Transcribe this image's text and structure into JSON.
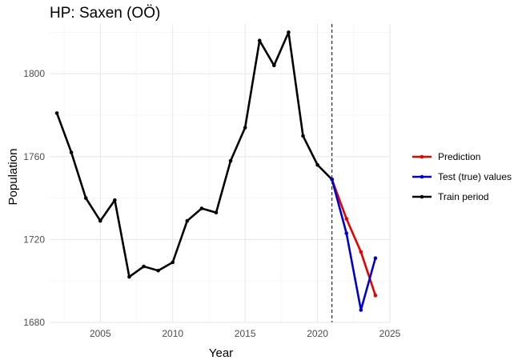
{
  "chart_data": {
    "type": "line",
    "title": "HP: Saxen (OÖ)",
    "xlabel": "Year",
    "ylabel": "Population",
    "xlim": [
      2001.5,
      2025
    ],
    "ylim": [
      1680,
      1824
    ],
    "x_ticks": [
      2005,
      2010,
      2015,
      2020,
      2025
    ],
    "y_ticks": [
      1680,
      1720,
      1760,
      1800
    ],
    "grid": true,
    "legend_position": "right",
    "vline": 2021,
    "series": [
      {
        "name": "Prediction",
        "color": "#e60000",
        "x": [
          2021,
          2022,
          2023,
          2024
        ],
        "values": [
          1749,
          1730,
          1714,
          1693
        ]
      },
      {
        "name": "Test (true) values",
        "color": "#0000cc",
        "x": [
          2021,
          2022,
          2023,
          2024
        ],
        "values": [
          1749,
          1723,
          1686,
          1711
        ]
      },
      {
        "name": "Train period",
        "color": "#000000",
        "x": [
          2002,
          2003,
          2004,
          2005,
          2006,
          2007,
          2008,
          2009,
          2010,
          2011,
          2012,
          2013,
          2014,
          2015,
          2016,
          2017,
          2018,
          2019,
          2020,
          2021
        ],
        "values": [
          1781,
          1762,
          1740,
          1729,
          1739,
          1702,
          1707,
          1705,
          1709,
          1729,
          1735,
          1733,
          1758,
          1774,
          1816,
          1804,
          1820,
          1770,
          1756,
          1749
        ]
      }
    ]
  }
}
